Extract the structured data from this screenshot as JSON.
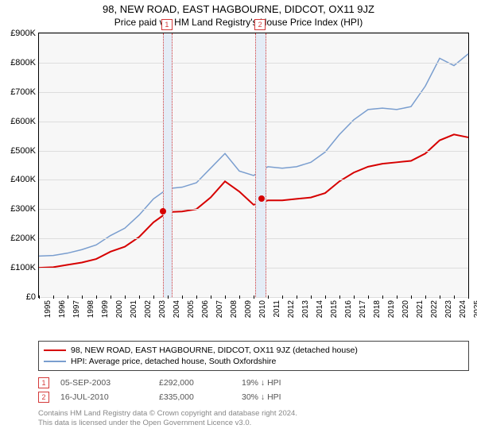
{
  "title": "98, NEW ROAD, EAST HAGBOURNE, DIDCOT, OX11 9JZ",
  "subtitle": "Price paid vs. HM Land Registry's House Price Index (HPI)",
  "chart": {
    "type": "line",
    "background_color": "#f7f7f7",
    "grid_color": "#dddddd",
    "border_color": "#000000",
    "x_years": [
      1995,
      1996,
      1997,
      1998,
      1999,
      2000,
      2001,
      2002,
      2003,
      2004,
      2005,
      2006,
      2007,
      2008,
      2009,
      2010,
      2011,
      2012,
      2013,
      2014,
      2015,
      2016,
      2017,
      2018,
      2019,
      2020,
      2021,
      2022,
      2023,
      2024,
      2025
    ],
    "xlim": [
      1995,
      2025
    ],
    "ylim": [
      0,
      900
    ],
    "ytick_step": 100,
    "ytick_prefix": "£",
    "ytick_suffix": "K",
    "bands": [
      {
        "id": "1",
        "x_start": 2003.68,
        "x_end": 2004.2
      },
      {
        "id": "2",
        "x_start": 2010.1,
        "x_end": 2010.8
      }
    ],
    "band_fill": "#e4ecf6",
    "band_border": "#d43a3a",
    "series": [
      {
        "name": "property",
        "color": "#d60000",
        "width": 2,
        "y": [
          100,
          102,
          110,
          118,
          130,
          155,
          172,
          205,
          255,
          290,
          292,
          300,
          340,
          395,
          360,
          315,
          330,
          330,
          335,
          340,
          355,
          395,
          425,
          445,
          455,
          460,
          465,
          490,
          535,
          555,
          545
        ]
      },
      {
        "name": "hpi",
        "color": "#7a9ecf",
        "width": 1.5,
        "y": [
          140,
          142,
          150,
          162,
          178,
          210,
          235,
          280,
          335,
          370,
          375,
          390,
          440,
          490,
          430,
          415,
          445,
          440,
          445,
          460,
          495,
          555,
          605,
          640,
          645,
          640,
          650,
          720,
          815,
          790,
          830
        ]
      }
    ],
    "sale_points": [
      {
        "id": "1",
        "x": 2003.68,
        "y": 292,
        "color": "#d60000"
      },
      {
        "id": "2",
        "x": 2010.54,
        "y": 335,
        "color": "#d60000"
      }
    ]
  },
  "legend": {
    "items": [
      {
        "color": "#d60000",
        "label": "98, NEW ROAD, EAST HAGBOURNE, DIDCOT, OX11 9JZ (detached house)"
      },
      {
        "color": "#7a9ecf",
        "label": "HPI: Average price, detached house, South Oxfordshire"
      }
    ]
  },
  "sales": [
    {
      "id": "1",
      "date": "05-SEP-2003",
      "price": "£292,000",
      "diff": "19% ↓ HPI"
    },
    {
      "id": "2",
      "date": "16-JUL-2010",
      "price": "£335,000",
      "diff": "30% ↓ HPI"
    }
  ],
  "footer_line1": "Contains HM Land Registry data © Crown copyright and database right 2024.",
  "footer_line2": "This data is licensed under the Open Government Licence v3.0."
}
